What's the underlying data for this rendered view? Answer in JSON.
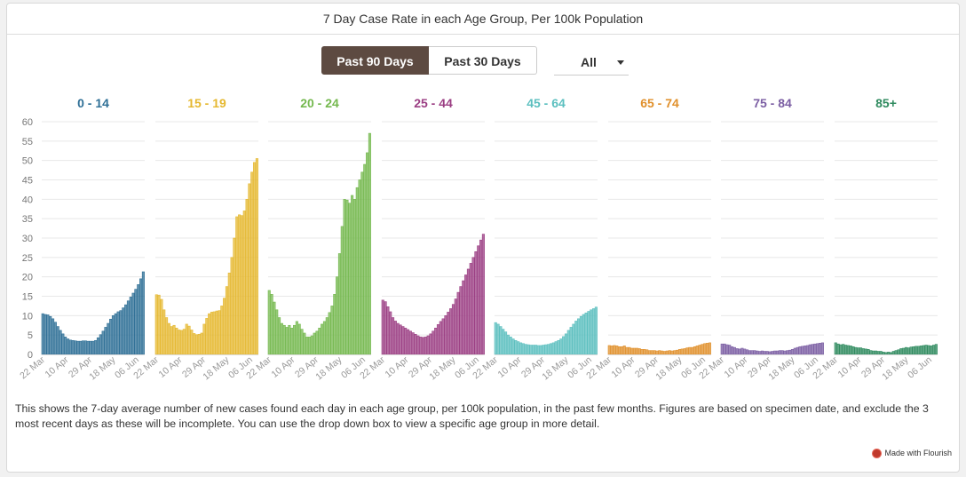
{
  "title": "7 Day Case Rate in each Age Group, Per 100k Population",
  "controls": {
    "active_label": "Past 90 Days",
    "inactive_label": "Past 30 Days",
    "dropdown_value": "All"
  },
  "description": "This shows the 7-day average number of new cases found each day in each age group, per 100k population, in the past few months. Figures are based on specimen date, and exclude the 3 most recent days as these will be incomplete. You can use the drop down box to view a specific age group in more detail.",
  "credit": "Made with Flourish",
  "chart_data": {
    "type": "bar",
    "layout": "small-multiples",
    "ylim": [
      0,
      60
    ],
    "yticks": [
      0,
      5,
      10,
      15,
      20,
      25,
      30,
      35,
      40,
      45,
      50,
      55,
      60
    ],
    "xtick_labels": [
      "22 Mar",
      "10 Apr",
      "29 Apr",
      "18 May",
      "06 Jun"
    ],
    "grid": true,
    "panels": [
      {
        "name": "0 - 14",
        "color": "#2e6f96",
        "values": [
          10.5,
          10.3,
          10.2,
          9.8,
          9.2,
          8.3,
          7.2,
          6.2,
          5.3,
          4.5,
          4.0,
          3.7,
          3.6,
          3.5,
          3.4,
          3.4,
          3.5,
          3.5,
          3.4,
          3.4,
          3.4,
          3.6,
          4.3,
          5.1,
          6.0,
          7.0,
          8.0,
          9.1,
          10.0,
          10.5,
          11.0,
          11.3,
          12.0,
          12.8,
          13.8,
          14.8,
          15.8,
          16.8,
          18.0,
          19.5,
          21.3
        ]
      },
      {
        "name": "15 - 19",
        "color": "#e5b830",
        "values": [
          15.4,
          15.3,
          14.2,
          11.5,
          9.5,
          8.0,
          7.2,
          7.5,
          6.8,
          6.3,
          6.2,
          6.5,
          7.8,
          7.3,
          6.3,
          5.4,
          5.1,
          5.2,
          5.5,
          7.8,
          9.3,
          10.5,
          10.9,
          11.0,
          11.2,
          11.3,
          12.5,
          14.5,
          17.5,
          21.0,
          25.0,
          30.0,
          35.5,
          36.0,
          35.8,
          37.0,
          40.0,
          44.0,
          47.0,
          49.5,
          50.5
        ]
      },
      {
        "name": "20 - 24",
        "color": "#74b84e",
        "values": [
          16.5,
          15.5,
          13.5,
          11.5,
          9.5,
          8.0,
          7.5,
          7.0,
          7.5,
          6.8,
          7.5,
          8.5,
          7.8,
          6.5,
          5.5,
          4.5,
          4.5,
          4.8,
          5.5,
          6.0,
          6.8,
          7.8,
          8.5,
          9.5,
          10.8,
          12.5,
          15.5,
          20.0,
          26.0,
          33.0,
          40.0,
          39.8,
          39.0,
          41.0,
          40.0,
          43.0,
          45.0,
          47.0,
          49.0,
          52.0,
          57.0
        ]
      },
      {
        "name": "25 - 44",
        "color": "#9b3e83",
        "values": [
          14.0,
          13.6,
          12.3,
          11.0,
          9.5,
          8.6,
          8.0,
          7.6,
          7.2,
          6.8,
          6.4,
          6.0,
          5.6,
          5.2,
          4.8,
          4.5,
          4.4,
          4.5,
          4.8,
          5.3,
          6.0,
          6.8,
          7.7,
          8.5,
          9.2,
          10.0,
          10.9,
          11.8,
          12.9,
          14.3,
          16.0,
          17.5,
          19.0,
          20.5,
          22.0,
          23.5,
          25.0,
          26.5,
          28.0,
          29.5,
          31.0
        ]
      },
      {
        "name": "45 - 64",
        "color": "#5bbfbf",
        "values": [
          8.2,
          7.8,
          7.2,
          6.5,
          5.8,
          5.0,
          4.5,
          4.0,
          3.6,
          3.3,
          3.0,
          2.8,
          2.6,
          2.5,
          2.4,
          2.4,
          2.4,
          2.3,
          2.3,
          2.4,
          2.5,
          2.6,
          2.8,
          3.0,
          3.3,
          3.6,
          4.0,
          4.6,
          5.3,
          6.2,
          7.0,
          7.8,
          8.6,
          9.2,
          9.8,
          10.3,
          10.7,
          11.1,
          11.5,
          11.8,
          12.2
        ]
      },
      {
        "name": "65 - 74",
        "color": "#e0902c",
        "values": [
          2.3,
          2.2,
          2.3,
          2.2,
          2.0,
          2.0,
          2.2,
          1.8,
          1.8,
          1.6,
          1.6,
          1.6,
          1.5,
          1.3,
          1.3,
          1.2,
          1.0,
          1.0,
          1.0,
          0.9,
          1.0,
          0.9,
          0.8,
          0.9,
          1.0,
          0.9,
          1.0,
          1.1,
          1.3,
          1.4,
          1.5,
          1.7,
          1.8,
          1.8,
          2.0,
          2.2,
          2.4,
          2.6,
          2.8,
          2.9,
          3.0
        ]
      },
      {
        "name": "75 - 84",
        "color": "#7b5ea3",
        "values": [
          2.7,
          2.7,
          2.5,
          2.4,
          2.0,
          1.8,
          1.5,
          1.4,
          1.6,
          1.4,
          1.2,
          1.0,
          1.0,
          1.0,
          0.9,
          0.8,
          0.9,
          0.8,
          0.8,
          0.7,
          0.8,
          0.9,
          0.9,
          1.0,
          1.0,
          0.9,
          1.0,
          1.1,
          1.3,
          1.6,
          1.8,
          2.0,
          2.1,
          2.2,
          2.3,
          2.5,
          2.6,
          2.7,
          2.8,
          2.9,
          3.0
        ]
      },
      {
        "name": "85+",
        "color": "#2e8a5e",
        "values": [
          3.0,
          2.7,
          2.5,
          2.6,
          2.4,
          2.3,
          2.2,
          2.0,
          1.8,
          1.7,
          1.7,
          1.5,
          1.4,
          1.3,
          1.0,
          0.9,
          0.9,
          0.8,
          0.8,
          0.6,
          0.5,
          0.6,
          0.5,
          0.8,
          1.0,
          1.2,
          1.5,
          1.6,
          1.8,
          1.7,
          1.9,
          2.0,
          2.1,
          2.1,
          2.2,
          2.3,
          2.4,
          2.3,
          2.2,
          2.4,
          2.6
        ]
      }
    ]
  }
}
